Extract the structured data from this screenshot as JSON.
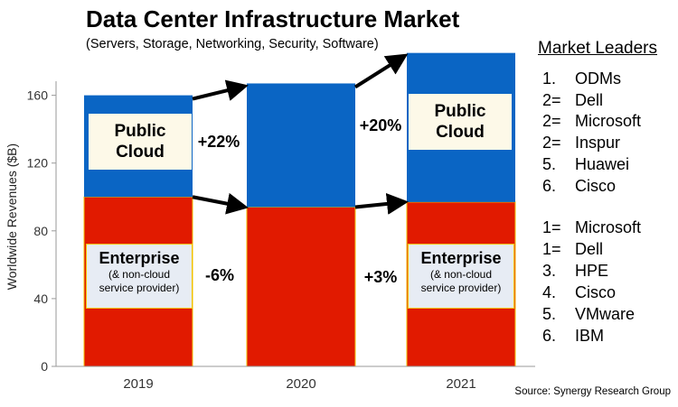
{
  "chart_data": {
    "type": "bar",
    "stacked": true,
    "title": "Data Center Infrastructure Market",
    "subtitle": "(Servers, Storage, Networking, Security, Software)",
    "xlabel": "",
    "ylabel": "Worldwide Revenues ($B)",
    "ylim": [
      0,
      170
    ],
    "yticks": [
      "0",
      "40",
      "80",
      "120",
      "160"
    ],
    "categories": [
      "2019",
      "2020",
      "2021"
    ],
    "series": [
      {
        "name": "Enterprise",
        "color": "#e11a00",
        "values": [
          100,
          94,
          97
        ]
      },
      {
        "name": "Public Cloud",
        "color": "#0a65c4",
        "values": [
          60,
          73,
          88
        ]
      }
    ],
    "annotations": {
      "cloud_change_2020": "+22%",
      "cloud_change_2021": "+20%",
      "enterprise_change_2020": "-6%",
      "enterprise_change_2021": "+3%"
    },
    "callouts": {
      "public_cloud": {
        "title_line1": "Public",
        "title_line2": "Cloud"
      },
      "enterprise": {
        "title": "Enterprise",
        "sub_line1": "(& non-cloud",
        "sub_line2": "service provider)"
      }
    },
    "source": "Source: Synergy Research Group"
  },
  "market_leaders": {
    "title": "Market Leaders",
    "cloud": [
      {
        "rank": "1.",
        "name": "ODMs"
      },
      {
        "rank": "2=",
        "name": "Dell"
      },
      {
        "rank": "2=",
        "name": "Microsoft"
      },
      {
        "rank": "2=",
        "name": "Inspur"
      },
      {
        "rank": "5.",
        "name": "Huawei"
      },
      {
        "rank": "6.",
        "name": "Cisco"
      }
    ],
    "enterprise": [
      {
        "rank": "1=",
        "name": "Microsoft"
      },
      {
        "rank": "1=",
        "name": "Dell"
      },
      {
        "rank": "3.",
        "name": "HPE"
      },
      {
        "rank": "4.",
        "name": "Cisco"
      },
      {
        "rank": "5.",
        "name": "VMware"
      },
      {
        "rank": "6.",
        "name": "IBM"
      }
    ]
  }
}
